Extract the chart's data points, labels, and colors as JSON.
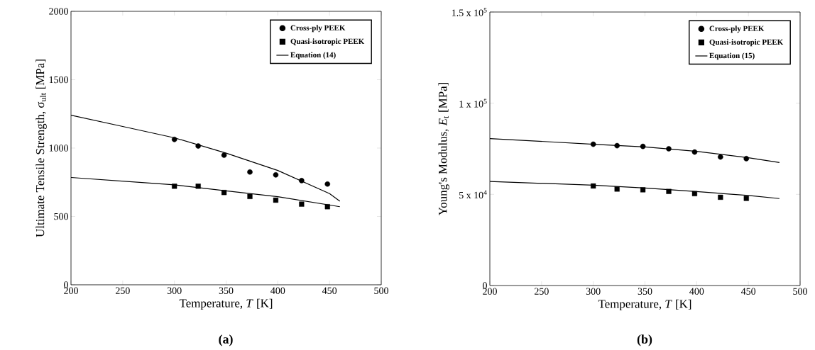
{
  "chart_data": [
    {
      "type": "scatter",
      "xlabel": "Temperature, *T* [K]",
      "ylabel": "Ultimate Tensile Strength, σ$_{ult}$ [MPa]",
      "annotations": [
        "(a)"
      ],
      "xlim": [
        200,
        500
      ],
      "ylim": [
        0,
        2000
      ],
      "xticks": [
        200,
        250,
        300,
        350,
        400,
        450,
        500
      ],
      "yticks": [
        0,
        500,
        1000,
        1500,
        2000
      ],
      "grid": false,
      "legend": "top right",
      "series": [
        {
          "name": "Cross-ply PEEK",
          "marker": "circle",
          "color": "#000000",
          "x": [
            300,
            323,
            348,
            373,
            398,
            423,
            448
          ],
          "values": [
            1063,
            1015,
            948,
            825,
            804,
            762,
            737
          ]
        },
        {
          "name": "Quasi-isotropic PEEK",
          "marker": "square",
          "color": "#000000",
          "x": [
            300,
            323,
            348,
            373,
            398,
            423,
            448
          ],
          "values": [
            721,
            721,
            675,
            646,
            619,
            590,
            571
          ]
        },
        {
          "name": "Equation (14)",
          "type": "line",
          "marker": "none",
          "color": "#000000",
          "x": [
            200,
            250,
            300,
            350,
            400,
            450,
            460
          ],
          "values": [
            1240,
            1158,
            1075,
            963,
            836,
            667,
            611
          ]
        },
        {
          "type": "line",
          "marker": "none",
          "color": "#000000",
          "x": [
            200,
            300,
            350,
            400,
            460
          ],
          "values": [
            785,
            731,
            687,
            644,
            571
          ]
        }
      ]
    },
    {
      "type": "scatter",
      "xlabel": "Temperature, *T* [K]",
      "ylabel": "Young's Modulus, *E*$_{t}$ [MPa]",
      "annotations": [
        "(b)"
      ],
      "xlim": [
        200,
        500
      ],
      "ylim": [
        0,
        150000
      ],
      "xticks": [
        200,
        250,
        300,
        350,
        400,
        450,
        500
      ],
      "yticks": [
        {
          "value": 0,
          "label": "0"
        },
        {
          "value": 50000,
          "label": "5 x 10$^{4}$"
        },
        {
          "value": 100000,
          "label": "1 x 10$^{5}$"
        },
        {
          "value": 150000,
          "label": "1.5 x 10$^{5}$"
        }
      ],
      "grid": false,
      "legend": "top right",
      "series": [
        {
          "name": "Cross-ply PEEK",
          "marker": "circle",
          "color": "#000000",
          "x": [
            300,
            323,
            348,
            373,
            398,
            423,
            448
          ],
          "values": [
            77500,
            76700,
            76300,
            75000,
            73200,
            70500,
            69600
          ]
        },
        {
          "name": "Quasi-isotropic PEEK",
          "marker": "square",
          "color": "#000000",
          "x": [
            300,
            323,
            348,
            373,
            398,
            423,
            448
          ],
          "values": [
            54600,
            52900,
            52500,
            51600,
            50400,
            48400,
            47800
          ]
        },
        {
          "name": "Equation (15)",
          "type": "line",
          "marker": "none",
          "color": "#000000",
          "x": [
            200,
            300,
            350,
            400,
            450,
            480
          ],
          "values": [
            80600,
            77500,
            76000,
            73600,
            70100,
            67500
          ]
        },
        {
          "type": "line",
          "marker": "none",
          "color": "#000000",
          "x": [
            200,
            300,
            350,
            400,
            450,
            480
          ],
          "values": [
            57100,
            55000,
            53500,
            51500,
            49400,
            47700
          ]
        }
      ]
    }
  ]
}
